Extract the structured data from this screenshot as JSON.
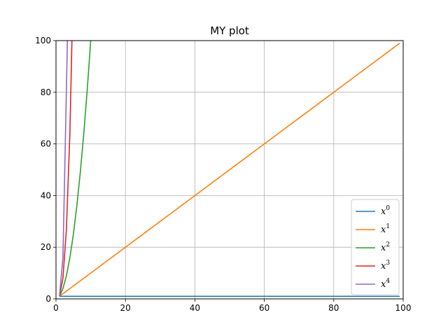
{
  "chart_data": {
    "type": "line",
    "title": "MY plot",
    "xlabel": "",
    "ylabel": "",
    "xlim": [
      0,
      100
    ],
    "ylim": [
      0,
      100
    ],
    "x_ticks": [
      0,
      20,
      40,
      60,
      80,
      100
    ],
    "y_ticks": [
      0,
      20,
      40,
      60,
      80,
      100
    ],
    "grid": true,
    "legend_position": "lower-right",
    "series": [
      {
        "name": "x^0",
        "base": "x",
        "exp": "0",
        "power": 0,
        "color": "#1f77b4",
        "x_start": 1,
        "x_end": 99
      },
      {
        "name": "x^1",
        "base": "x",
        "exp": "1",
        "power": 1,
        "color": "#ff7f0e",
        "x_start": 1,
        "x_end": 99
      },
      {
        "name": "x^2",
        "base": "x",
        "exp": "2",
        "power": 2,
        "color": "#2ca02c",
        "x_start": 1,
        "x_end": 99
      },
      {
        "name": "x^3",
        "base": "x",
        "exp": "3",
        "power": 3,
        "color": "#d62728",
        "x_start": 1,
        "x_end": 99
      },
      {
        "name": "x^4",
        "base": "x",
        "exp": "4",
        "power": 4,
        "color": "#9467bd",
        "x_start": 1,
        "x_end": 99
      }
    ]
  }
}
